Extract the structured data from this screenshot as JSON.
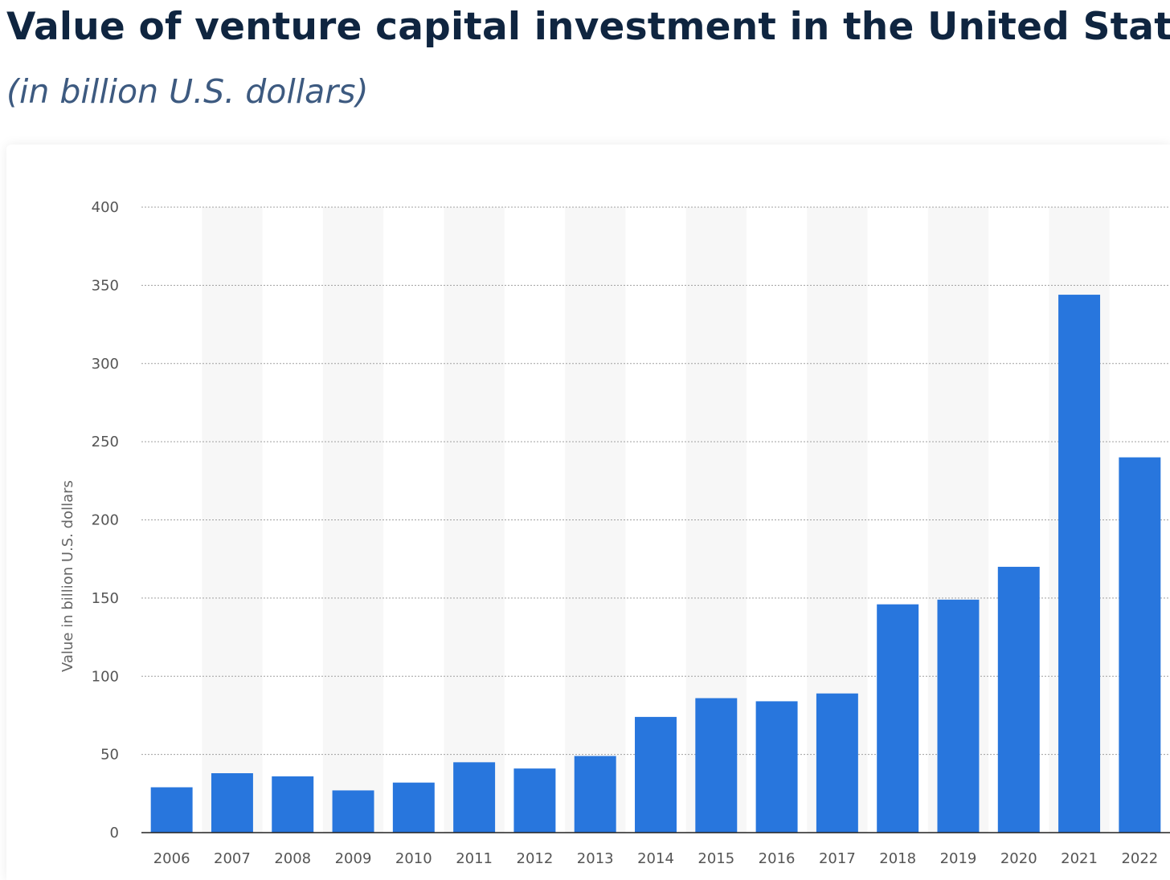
{
  "header": {
    "title": "Value of venture capital investment in the United States",
    "subtitle": "(in billion U.S. dollars)"
  },
  "colors": {
    "bar": "#2876dd",
    "band": "#f7f7f7",
    "grid": "#a0a0a0",
    "axis": "#222222"
  },
  "chart_data": {
    "type": "bar",
    "title": "Value of venture capital investment in the United States",
    "subtitle": "(in billion U.S. dollars)",
    "xlabel": "",
    "ylabel": "Value in billion U.S. dollars",
    "categories": [
      "2006",
      "2007",
      "2008",
      "2009",
      "2010",
      "2011",
      "2012",
      "2013",
      "2014",
      "2015",
      "2016",
      "2017",
      "2018",
      "2019",
      "2020",
      "2021",
      "2022"
    ],
    "values": [
      29,
      38,
      36,
      27,
      32,
      45,
      41,
      49,
      74,
      86,
      84,
      89,
      146,
      149,
      170,
      344,
      240
    ],
    "ylim": [
      0,
      400
    ],
    "yticks": [
      0,
      50,
      100,
      150,
      200,
      250,
      300,
      350,
      400
    ],
    "grid": true,
    "alternating_bands": true,
    "legend": "none"
  }
}
